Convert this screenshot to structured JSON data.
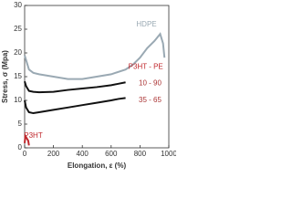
{
  "chart_data": {
    "type": "line",
    "x_label": "Elongation, ε (%)",
    "y_label": "Stress, σ (Mpa)",
    "annotation": "P3HT - PE",
    "xlim": [
      0,
      1000
    ],
    "xticks": [
      0,
      200,
      400,
      600,
      800,
      1000
    ],
    "ylim": [
      0,
      30
    ],
    "yticks": [
      0,
      5,
      10,
      15,
      20,
      25,
      30
    ],
    "series": [
      {
        "name": "HDPE",
        "color": "#9aa9b3",
        "x": [
          0,
          10,
          30,
          60,
          100,
          200,
          300,
          400,
          500,
          600,
          700,
          750,
          800,
          850,
          900,
          940,
          960,
          970
        ],
        "values": [
          19.5,
          18.5,
          16.5,
          15.8,
          15.5,
          15,
          14.5,
          14.5,
          15,
          15.5,
          16.5,
          17.5,
          19,
          21,
          22.5,
          24,
          22,
          19
        ]
      },
      {
        "name": "10 - 90",
        "color": "#111111",
        "x": [
          0,
          10,
          30,
          60,
          100,
          200,
          300,
          400,
          500,
          600,
          650,
          700
        ],
        "values": [
          14,
          13,
          12,
          11.8,
          11.7,
          11.8,
          12.2,
          12.5,
          12.8,
          13.2,
          13.5,
          13.8
        ]
      },
      {
        "name": "35 - 65",
        "color": "#111111",
        "x": [
          0,
          10,
          30,
          60,
          100,
          200,
          300,
          400,
          500,
          600,
          650,
          700
        ],
        "values": [
          10,
          8.5,
          7.5,
          7.3,
          7.5,
          8,
          8.5,
          9,
          9.5,
          10,
          10.3,
          10.5
        ]
      },
      {
        "name": "P3HT",
        "color": "#c0282d",
        "x": [
          0,
          5,
          15,
          25,
          30
        ],
        "values": [
          1,
          2.5,
          2,
          1.5,
          0.5
        ]
      }
    ]
  }
}
